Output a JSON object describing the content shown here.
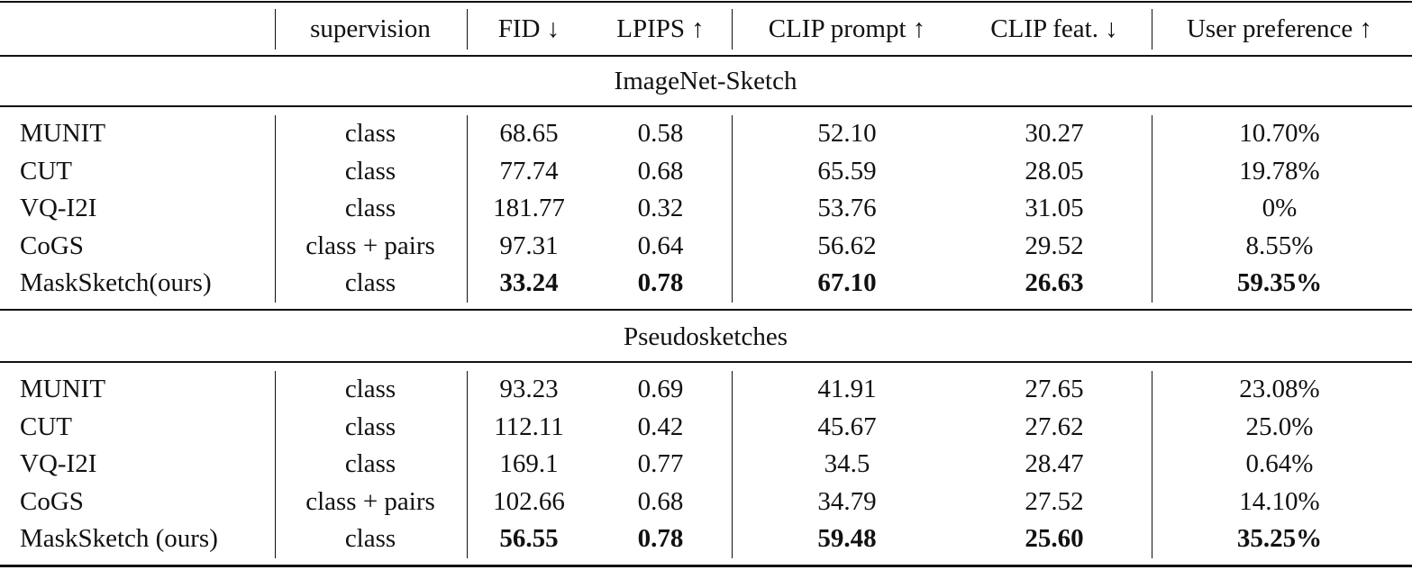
{
  "table": {
    "header": [
      "",
      "supervision",
      "FID ↓",
      "LPIPS ↑",
      "CLIP prompt ↑",
      "CLIP feat. ↓",
      "User preference ↑"
    ],
    "sections": [
      {
        "title": "ImageNet-Sketch",
        "rows": [
          [
            "MUNIT",
            "class",
            "68.65",
            "0.58",
            "52.10",
            "30.27",
            "10.70%"
          ],
          [
            "CUT",
            "class",
            "77.74",
            "0.68",
            "65.59",
            "28.05",
            "19.78%"
          ],
          [
            "VQ-I2I",
            "class",
            "181.77",
            "0.32",
            "53.76",
            "31.05",
            "0%"
          ],
          [
            "CoGS",
            "class + pairs",
            "97.31",
            "0.64",
            "56.62",
            "29.52",
            "8.55%"
          ],
          [
            "MaskSketch(ours)",
            "class",
            "33.24",
            "0.78",
            "67.10",
            "26.63",
            "59.35%"
          ]
        ]
      },
      {
        "title": "Pseudosketches",
        "rows": [
          [
            "MUNIT",
            "class",
            "93.23",
            "0.69",
            "41.91",
            "27.65",
            "23.08%"
          ],
          [
            "CUT",
            "class",
            "112.11",
            "0.42",
            "45.67",
            "27.62",
            "25.0%"
          ],
          [
            "VQ-I2I",
            "class",
            "169.1",
            "0.77",
            "34.5",
            "28.47",
            "0.64%"
          ],
          [
            "CoGS",
            "class + pairs",
            "102.66",
            "0.68",
            "34.79",
            "27.52",
            "14.10%"
          ],
          [
            "MaskSketch (ours)",
            "class",
            "56.55",
            "0.78",
            "59.48",
            "25.60",
            "35.25%"
          ]
        ]
      }
    ]
  }
}
